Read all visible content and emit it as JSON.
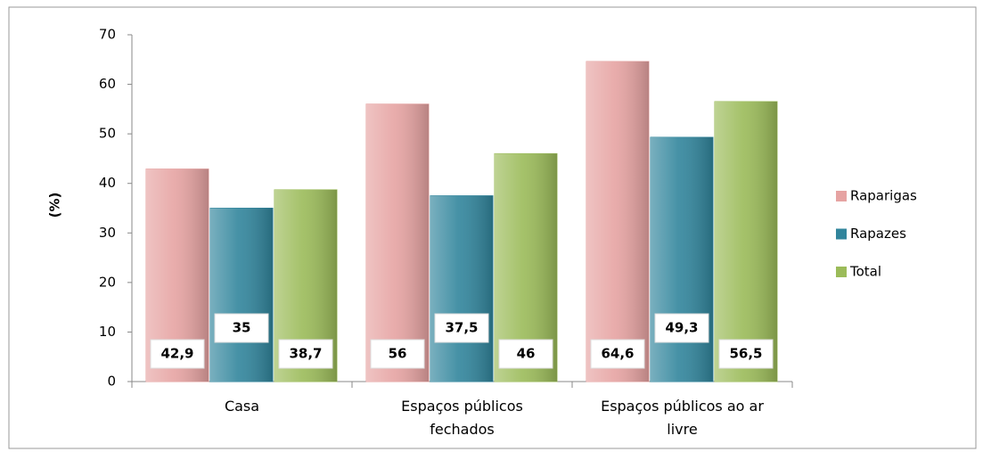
{
  "chart_data": {
    "type": "bar",
    "y_label": "(%)",
    "categories": [
      "Casa",
      "Espaços públicos fechados",
      "Espaços públicos ao ar livre"
    ],
    "series": [
      {
        "name": "Raparigas",
        "color": "#e6a3a2",
        "label_color": "#953735",
        "values": [
          42.9,
          56,
          64.6
        ],
        "value_labels": [
          "42,9",
          "56",
          "64,6"
        ]
      },
      {
        "name": "Rapazes",
        "color": "#31859c",
        "label_color": "#31859c",
        "values": [
          35,
          37.5,
          49.3
        ],
        "value_labels": [
          "35",
          "37,5",
          "49,3"
        ]
      },
      {
        "name": "Total",
        "color": "#9bbb59",
        "label_color": "#4f6228",
        "values": [
          38.7,
          46,
          56.5
        ],
        "value_labels": [
          "38,7",
          "46",
          "56,5"
        ]
      }
    ],
    "ylim": [
      0,
      70
    ],
    "yticks": [
      0,
      10,
      20,
      30,
      40,
      50,
      60,
      70
    ],
    "legend": "right"
  }
}
